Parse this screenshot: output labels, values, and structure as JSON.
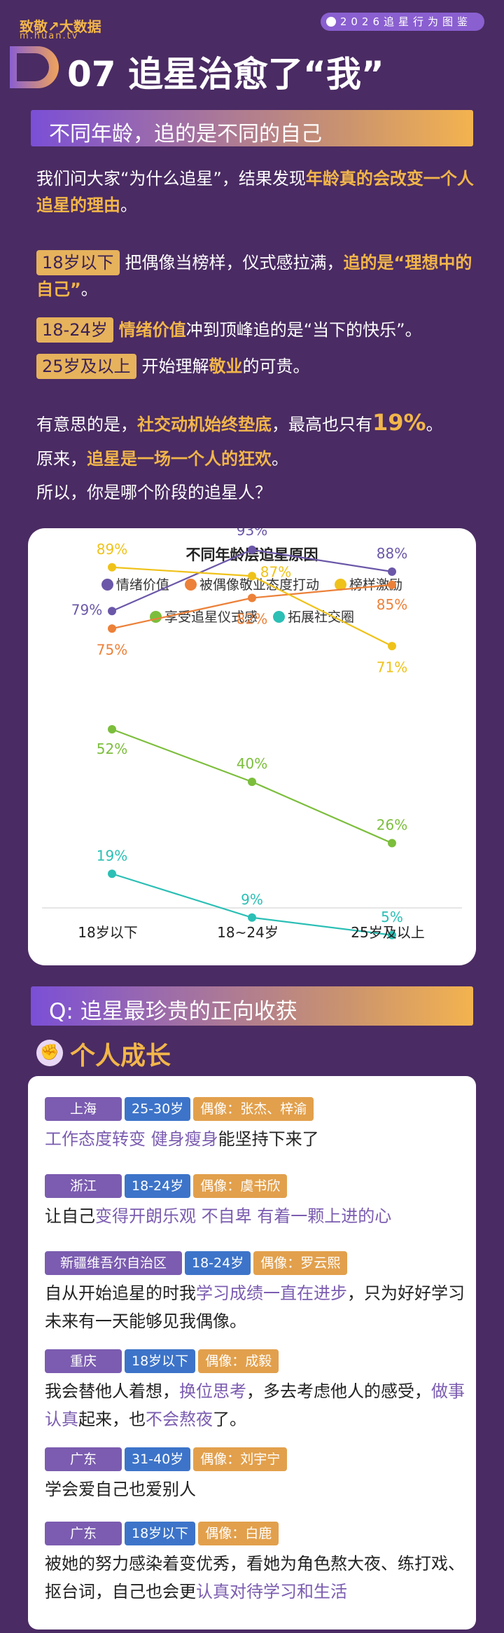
{
  "header": {
    "logo_main": "致敬↗大数据",
    "logo_sub": "m.huan.tv",
    "badge": "2026追星行为图鉴",
    "section_title": "07 追星治愈了“我”"
  },
  "subtitle_bar": "不同年龄，追的是不同的自己",
  "intro": {
    "p1_a": "我们问大家“为什么追星”，结果发现",
    "p1_b": "年龄真的会改变一个人追星的理由",
    "p1_c": "。",
    "age1_tag": "18岁以下",
    "age1_a": "把偶像当榜样，仪式感拉满，",
    "age1_b": "追的是“理想中的自己”",
    "age1_c": "。",
    "age2_tag": "18-24岁",
    "age2_a": "情绪价值",
    "age2_b": "冲到顶峰追的是“当下的快乐”。",
    "age3_tag": "25岁及以上",
    "age3_a": "开始理解",
    "age3_b": "敬业",
    "age3_c": "的可贵。",
    "p3_a": "有意思的是，",
    "p3_b": "社交动机始终垫底",
    "p3_c": "，最高也只有",
    "p3_d": "19%",
    "p3_e": "。",
    "p4_a": "原来，",
    "p4_b": "追星是一场一个人的狂欢",
    "p4_c": "。",
    "p5": "所以，你是哪个阶段的追星人？"
  },
  "chart_data": {
    "type": "line",
    "title": "不同年龄层追星原因",
    "categories": [
      "18岁以下",
      "18~24岁",
      "25岁及以上"
    ],
    "ylim": [
      0,
      100
    ],
    "series": [
      {
        "name": "情绪价值",
        "color": "#6b57a8",
        "values": [
          79,
          93,
          88
        ],
        "labels": [
          "79%",
          "93%",
          "88%"
        ]
      },
      {
        "name": "被偶像敬业态度打动",
        "color": "#ec8139",
        "values": [
          75,
          82,
          85
        ],
        "labels": [
          "75%",
          "82%",
          "85%"
        ]
      },
      {
        "name": "榜样激励",
        "color": "#efc21a",
        "values": [
          89,
          87,
          71
        ],
        "labels": [
          "89%",
          "87%",
          "71%"
        ]
      },
      {
        "name": "享受追星仪式感",
        "color": "#7cbe3c",
        "values": [
          52,
          40,
          26
        ],
        "labels": [
          "52%",
          "40%",
          "26%"
        ]
      },
      {
        "name": "拓展社交圈",
        "color": "#2bbfb5",
        "values": [
          19,
          9,
          5
        ],
        "labels": [
          "19%",
          "9%",
          "5%"
        ]
      }
    ],
    "legend_placement": "top"
  },
  "q_bar": "Q:  追星最珍贵的正向收获",
  "growth": {
    "icon": "fist-icon",
    "title": "个人成长"
  },
  "entries": [
    {
      "region": "上海",
      "age": "25-30岁",
      "idol": "偶像：张杰、梓渝",
      "parts": [
        {
          "t": "工作态度转变 健身瘦身",
          "c": "pu"
        },
        {
          "t": "能坚持下来了",
          "c": ""
        }
      ]
    },
    {
      "region": "浙江",
      "age": "18-24岁",
      "idol": "偶像：虞书欣",
      "parts": [
        {
          "t": "让自己",
          "c": ""
        },
        {
          "t": "变得开朗乐观  不自卑  有着一颗上进的心",
          "c": "pu"
        }
      ]
    },
    {
      "region": "新疆维吾尔自治区",
      "age": "18-24岁",
      "idol": "偶像：罗云熙",
      "parts": [
        {
          "t": "自从开始追星的时我",
          "c": ""
        },
        {
          "t": "学习成绩一直在进步",
          "c": "pu"
        },
        {
          "t": "，只为好好学习未来有一天能够见我偶像。",
          "c": ""
        }
      ]
    },
    {
      "region": "重庆",
      "age": "18岁以下",
      "idol": "偶像：成毅",
      "parts": [
        {
          "t": "我会替他人着想，",
          "c": ""
        },
        {
          "t": "换位思考",
          "c": "pu"
        },
        {
          "t": "，多去考虑他人的感受，",
          "c": ""
        },
        {
          "t": "做事认真",
          "c": "pu"
        },
        {
          "t": "起来，也",
          "c": ""
        },
        {
          "t": "不会熬夜",
          "c": "pu"
        },
        {
          "t": "了。",
          "c": ""
        }
      ]
    },
    {
      "region": "广东",
      "age": "31-40岁",
      "idol": "偶像：刘宇宁",
      "parts": [
        {
          "t": "学会爱自己也爱别人",
          "c": ""
        }
      ]
    },
    {
      "region": "广东",
      "age": "18岁以下",
      "idol": "偶像：白鹿",
      "parts": [
        {
          "t": "被她的努力感染着变优秀，看她为角色熬大夜、练打戏、抠台词，自己也会更",
          "c": ""
        },
        {
          "t": "认真对待学习和生活",
          "c": "pu"
        }
      ]
    }
  ]
}
